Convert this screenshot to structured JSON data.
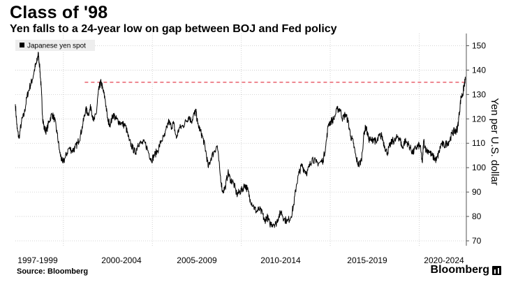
{
  "header": {
    "title": "Class of '98",
    "subtitle": "Yen falls to a 24-year low on gap between BOJ and Fed policy"
  },
  "footer": {
    "source": "Source: Bloomberg",
    "brand": "Bloomberg"
  },
  "chart_data": {
    "type": "line",
    "ylabel": "Yen per U.S. dollar",
    "ylim": [
      68,
      155
    ],
    "yticks": [
      70,
      80,
      90,
      100,
      110,
      120,
      130,
      140,
      150
    ],
    "xlim": [
      1997.3,
      2022.65
    ],
    "x_tick_labels": [
      "1997-1999",
      "2000-2004",
      "2005-2009",
      "2010-2014",
      "2015-2019",
      "2020-2024"
    ],
    "x_tick_positions": [
      1997.0,
      2000.0,
      2005.0,
      2010.0,
      2015.0,
      2020.0
    ],
    "legend": {
      "label": "Japanese yen spot",
      "position": "top-left"
    },
    "reference_line": {
      "value": 135,
      "from_x": 2001.2,
      "color": "#e4414f",
      "style": "dashed"
    },
    "line_color": "#000000",
    "grid": true,
    "series": [
      {
        "name": "Japanese yen spot",
        "points": [
          [
            1997.3,
            126
          ],
          [
            1997.4,
            116
          ],
          [
            1997.5,
            112
          ],
          [
            1997.65,
            119
          ],
          [
            1997.8,
            122
          ],
          [
            1997.95,
            129
          ],
          [
            1998.1,
            133
          ],
          [
            1998.25,
            136
          ],
          [
            1998.4,
            141
          ],
          [
            1998.5,
            143
          ],
          [
            1998.58,
            147
          ],
          [
            1998.66,
            142
          ],
          [
            1998.75,
            133
          ],
          [
            1998.83,
            121
          ],
          [
            1998.92,
            116
          ],
          [
            1999.05,
            115
          ],
          [
            1999.2,
            119
          ],
          [
            1999.35,
            122
          ],
          [
            1999.5,
            120
          ],
          [
            1999.65,
            114
          ],
          [
            1999.8,
            106
          ],
          [
            1999.95,
            102
          ],
          [
            2000.1,
            104
          ],
          [
            2000.3,
            108
          ],
          [
            2000.5,
            107
          ],
          [
            2000.65,
            108
          ],
          [
            2000.8,
            110
          ],
          [
            2000.95,
            113
          ],
          [
            2001.1,
            118
          ],
          [
            2001.25,
            124
          ],
          [
            2001.4,
            122
          ],
          [
            2001.55,
            125
          ],
          [
            2001.7,
            119
          ],
          [
            2001.85,
            122
          ],
          [
            2001.95,
            130
          ],
          [
            2002.05,
            134
          ],
          [
            2002.12,
            135
          ],
          [
            2002.22,
            132
          ],
          [
            2002.35,
            128
          ],
          [
            2002.5,
            119
          ],
          [
            2002.65,
            118
          ],
          [
            2002.8,
            122
          ],
          [
            2002.95,
            120
          ],
          [
            2003.1,
            119
          ],
          [
            2003.3,
            118
          ],
          [
            2003.5,
            117
          ],
          [
            2003.7,
            111
          ],
          [
            2003.9,
            108
          ],
          [
            2004.05,
            106
          ],
          [
            2004.2,
            110
          ],
          [
            2004.4,
            110
          ],
          [
            2004.6,
            110
          ],
          [
            2004.8,
            106
          ],
          [
            2004.95,
            103
          ],
          [
            2005.1,
            105
          ],
          [
            2005.3,
            107
          ],
          [
            2005.5,
            111
          ],
          [
            2005.7,
            113
          ],
          [
            2005.9,
            119
          ],
          [
            2006.05,
            117
          ],
          [
            2006.2,
            118
          ],
          [
            2006.35,
            112
          ],
          [
            2006.5,
            116
          ],
          [
            2006.7,
            117
          ],
          [
            2006.9,
            119
          ],
          [
            2007.05,
            121
          ],
          [
            2007.2,
            119
          ],
          [
            2007.35,
            122
          ],
          [
            2007.45,
            123
          ],
          [
            2007.55,
            118
          ],
          [
            2007.7,
            115
          ],
          [
            2007.85,
            112
          ],
          [
            2008.0,
            107
          ],
          [
            2008.15,
            100
          ],
          [
            2008.3,
            104
          ],
          [
            2008.5,
            107
          ],
          [
            2008.65,
            109
          ],
          [
            2008.8,
            98
          ],
          [
            2008.95,
            90
          ],
          [
            2009.1,
            92
          ],
          [
            2009.25,
            98
          ],
          [
            2009.4,
            95
          ],
          [
            2009.55,
            94
          ],
          [
            2009.75,
            89
          ],
          [
            2009.9,
            90
          ],
          [
            2010.05,
            91
          ],
          [
            2010.2,
            93
          ],
          [
            2010.35,
            91
          ],
          [
            2010.5,
            87
          ],
          [
            2010.7,
            84
          ],
          [
            2010.85,
            82
          ],
          [
            2011.0,
            83
          ],
          [
            2011.2,
            81
          ],
          [
            2011.3,
            78
          ],
          [
            2011.45,
            80
          ],
          [
            2011.6,
            77
          ],
          [
            2011.8,
            77
          ],
          [
            2011.95,
            77
          ],
          [
            2012.1,
            80
          ],
          [
            2012.25,
            82
          ],
          [
            2012.4,
            79
          ],
          [
            2012.6,
            78
          ],
          [
            2012.8,
            80
          ],
          [
            2012.95,
            85
          ],
          [
            2013.1,
            93
          ],
          [
            2013.25,
            98
          ],
          [
            2013.4,
            101
          ],
          [
            2013.55,
            99
          ],
          [
            2013.7,
            98
          ],
          [
            2013.85,
            101
          ],
          [
            2014.0,
            104
          ],
          [
            2014.2,
            102
          ],
          [
            2014.4,
            102
          ],
          [
            2014.6,
            103
          ],
          [
            2014.75,
            109
          ],
          [
            2014.9,
            118
          ],
          [
            2015.05,
            119
          ],
          [
            2015.2,
            120
          ],
          [
            2015.4,
            124
          ],
          [
            2015.55,
            124
          ],
          [
            2015.7,
            120
          ],
          [
            2015.85,
            122
          ],
          [
            2016.0,
            119
          ],
          [
            2016.15,
            113
          ],
          [
            2016.3,
            110
          ],
          [
            2016.45,
            104
          ],
          [
            2016.6,
            101
          ],
          [
            2016.75,
            103
          ],
          [
            2016.9,
            114
          ],
          [
            2017.0,
            117
          ],
          [
            2017.15,
            112
          ],
          [
            2017.3,
            111
          ],
          [
            2017.45,
            112
          ],
          [
            2017.6,
            110
          ],
          [
            2017.75,
            113
          ],
          [
            2017.9,
            113
          ],
          [
            2018.05,
            109
          ],
          [
            2018.2,
            106
          ],
          [
            2018.35,
            109
          ],
          [
            2018.5,
            111
          ],
          [
            2018.65,
            111
          ],
          [
            2018.8,
            113
          ],
          [
            2018.95,
            111
          ],
          [
            2019.05,
            108
          ],
          [
            2019.2,
            111
          ],
          [
            2019.35,
            110
          ],
          [
            2019.5,
            108
          ],
          [
            2019.65,
            106
          ],
          [
            2019.8,
            108
          ],
          [
            2019.95,
            109
          ],
          [
            2020.05,
            109
          ],
          [
            2020.18,
            102
          ],
          [
            2020.25,
            111
          ],
          [
            2020.4,
            107
          ],
          [
            2020.55,
            107
          ],
          [
            2020.7,
            105
          ],
          [
            2020.85,
            104
          ],
          [
            2020.97,
            103
          ],
          [
            2021.1,
            106
          ],
          [
            2021.25,
            110
          ],
          [
            2021.4,
            109
          ],
          [
            2021.55,
            110
          ],
          [
            2021.7,
            111
          ],
          [
            2021.85,
            114
          ],
          [
            2021.97,
            115
          ],
          [
            2022.05,
            115
          ],
          [
            2022.15,
            116
          ],
          [
            2022.25,
            122
          ],
          [
            2022.35,
            129
          ],
          [
            2022.45,
            130
          ],
          [
            2022.53,
            134
          ],
          [
            2022.6,
            136
          ]
        ]
      }
    ]
  }
}
